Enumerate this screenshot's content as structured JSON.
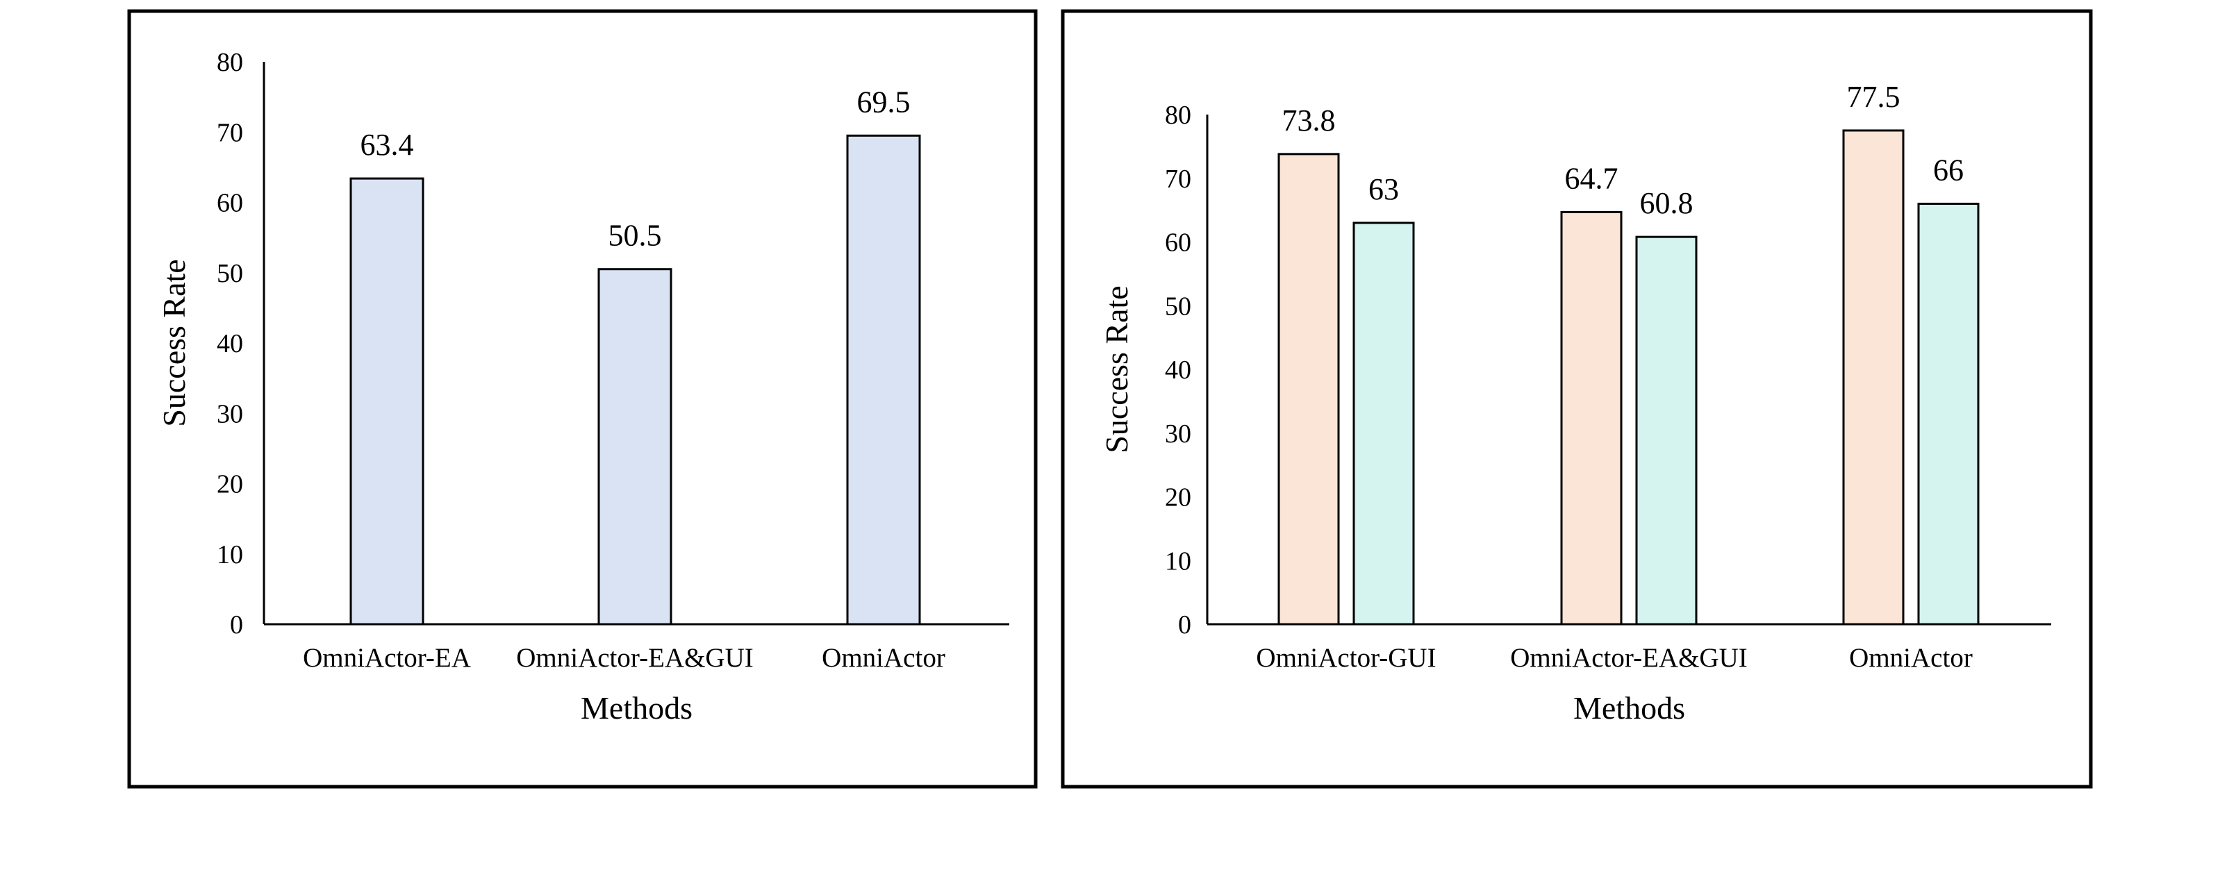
{
  "colors": {
    "frame": "#000000",
    "series_single": "#dae3f3",
    "series_a": "#fbe5d6",
    "series_b": "#d5f3ef"
  },
  "chart_data": [
    {
      "type": "bar",
      "xlabel": "Methods",
      "ylabel": "Success Rate",
      "ylim": [
        0,
        80
      ],
      "yticks": [
        0,
        10,
        20,
        30,
        40,
        50,
        60,
        70,
        80
      ],
      "categories": [
        "OmniActor-EA",
        "OmniActor-EA&GUI",
        "OmniActor"
      ],
      "series": [
        {
          "values": [
            63.4,
            50.5,
            69.5
          ],
          "labels": [
            "63.4",
            "50.5",
            "69.5"
          ],
          "color": "#dae3f3"
        }
      ]
    },
    {
      "type": "bar",
      "xlabel": "Methods",
      "ylabel": "Success Rate",
      "ylim": [
        0,
        80
      ],
      "yticks": [
        0,
        10,
        20,
        30,
        40,
        50,
        60,
        70,
        80
      ],
      "categories": [
        "OmniActor-GUI",
        "OmniActor-EA&GUI",
        "OmniActor"
      ],
      "series": [
        {
          "values": [
            73.8,
            64.7,
            77.5
          ],
          "labels": [
            "73.8",
            "64.7",
            "77.5"
          ],
          "color": "#fbe5d6"
        },
        {
          "values": [
            63,
            60.8,
            66
          ],
          "labels": [
            "63",
            "60.8",
            "66"
          ],
          "color": "#d5f3ef"
        }
      ]
    }
  ]
}
